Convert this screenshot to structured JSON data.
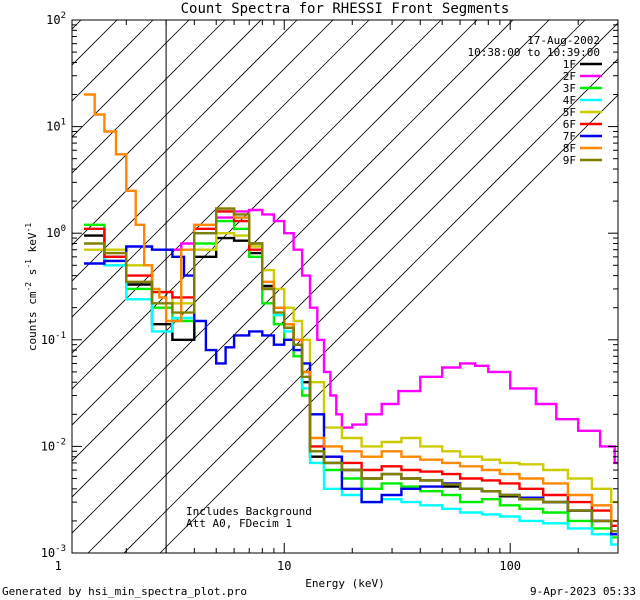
{
  "chart_data": {
    "type": "line",
    "title": "Count Spectra for RHESSI Front Segments",
    "xlabel": "Energy (keV)",
    "ylabel": "counts cm-2 s-1 keV-1",
    "xscale": "log",
    "yscale": "log",
    "xlim": [
      1.15,
      300
    ],
    "ylim": [
      0.001,
      100
    ],
    "shaded_range_keV": [
      1.15,
      3.0
    ],
    "x_ticks": [
      {
        "value": 1,
        "label": "1"
      },
      {
        "value": 10,
        "label": "10"
      },
      {
        "value": 100,
        "label": "100"
      }
    ],
    "y_ticks": [
      {
        "value": 0.001,
        "base": "10",
        "exp": "-3"
      },
      {
        "value": 0.01,
        "base": "10",
        "exp": "-2"
      },
      {
        "value": 0.1,
        "base": "10",
        "exp": "-1"
      },
      {
        "value": 1,
        "base": "10",
        "exp": "0"
      },
      {
        "value": 10,
        "base": "10",
        "exp": "1"
      },
      {
        "value": 100,
        "base": "10",
        "exp": "2"
      }
    ],
    "date": "17-Aug-2002",
    "time_range": "10:38:00 to 10:39:00",
    "annotations": [
      "Includes Background",
      "Att A0, FDecim 1"
    ],
    "legend_position": "top-right",
    "series": [
      {
        "name": "1F",
        "color": "#000000",
        "x": [
          1.3,
          1.6,
          2.0,
          2.6,
          3.2,
          4.0,
          5.0,
          6.0,
          7.0,
          8.0,
          9.0,
          10.0,
          11.0,
          12.0,
          13.0,
          15.0,
          18.0,
          22.0,
          27.0,
          33.0,
          40.0,
          50.0,
          60.0,
          75.0,
          90.0,
          110.0,
          140.0,
          180.0,
          230.0,
          280.0
        ],
        "values": [
          0.95,
          0.6,
          0.33,
          0.14,
          0.1,
          0.6,
          0.9,
          0.85,
          0.65,
          0.32,
          0.2,
          0.13,
          0.09,
          0.04,
          0.008,
          0.007,
          0.006,
          0.005,
          0.0055,
          0.005,
          0.0048,
          0.0042,
          0.004,
          0.0038,
          0.0034,
          0.0032,
          0.003,
          0.0025,
          0.002,
          0.0015
        ]
      },
      {
        "name": "2F",
        "color": "#ff00ff",
        "x": [
          3.0,
          3.5,
          4.0,
          5.0,
          6.0,
          7.0,
          8.0,
          9.0,
          10.0,
          11.0,
          12.0,
          13.0,
          14.0,
          15.0,
          16.0,
          17.0,
          18.0,
          20.0,
          23.0,
          27.0,
          32.0,
          40.0,
          50.0,
          60.0,
          70.0,
          80.0,
          100.0,
          130.0,
          160.0,
          200.0,
          250.0,
          290.0
        ],
        "values": [
          0.7,
          0.8,
          1.0,
          1.4,
          1.6,
          1.65,
          1.5,
          1.3,
          1.0,
          0.7,
          0.4,
          0.2,
          0.1,
          0.05,
          0.03,
          0.02,
          0.015,
          0.016,
          0.02,
          0.025,
          0.033,
          0.045,
          0.055,
          0.06,
          0.057,
          0.05,
          0.035,
          0.025,
          0.018,
          0.014,
          0.01,
          0.007
        ]
      },
      {
        "name": "3F",
        "color": "#00ee00",
        "x": [
          1.3,
          1.6,
          2.0,
          2.6,
          3.2,
          4.0,
          5.0,
          6.0,
          7.0,
          8.0,
          9.0,
          10.0,
          11.0,
          12.0,
          13.0,
          15.0,
          18.0,
          22.0,
          27.0,
          33.0,
          40.0,
          50.0,
          60.0,
          75.0,
          90.0,
          110.0,
          140.0,
          180.0,
          230.0,
          280.0
        ],
        "values": [
          1.2,
          0.55,
          0.3,
          0.2,
          0.15,
          0.8,
          1.3,
          1.1,
          0.6,
          0.22,
          0.14,
          0.1,
          0.07,
          0.03,
          0.009,
          0.006,
          0.005,
          0.004,
          0.0045,
          0.0042,
          0.0038,
          0.0035,
          0.003,
          0.0032,
          0.0028,
          0.0026,
          0.0024,
          0.002,
          0.0017,
          0.0014
        ]
      },
      {
        "name": "4F",
        "color": "#00ffff",
        "x": [
          1.3,
          1.6,
          2.0,
          2.6,
          3.2,
          4.0,
          5.0,
          6.0,
          7.0,
          8.0,
          9.0,
          10.0,
          11.0,
          12.0,
          13.0,
          15.0,
          18.0,
          22.0,
          27.0,
          33.0,
          40.0,
          50.0,
          60.0,
          75.0,
          90.0,
          110.0,
          140.0,
          180.0,
          230.0,
          280.0
        ],
        "values": [
          1.1,
          0.5,
          0.24,
          0.12,
          0.16,
          1.0,
          1.6,
          1.4,
          0.8,
          0.3,
          0.17,
          0.12,
          0.08,
          0.035,
          0.007,
          0.004,
          0.0035,
          0.003,
          0.0032,
          0.003,
          0.0028,
          0.0026,
          0.0024,
          0.0023,
          0.0022,
          0.002,
          0.0019,
          0.0017,
          0.0015,
          0.0012
        ]
      },
      {
        "name": "5F",
        "color": "#cccc00",
        "x": [
          1.3,
          1.6,
          2.0,
          2.6,
          3.2,
          4.0,
          5.0,
          6.0,
          7.0,
          8.0,
          9.0,
          10.0,
          11.0,
          12.0,
          13.0,
          15.0,
          18.0,
          22.0,
          27.0,
          33.0,
          40.0,
          50.0,
          60.0,
          75.0,
          90.0,
          110.0,
          140.0,
          180.0,
          230.0,
          280.0
        ],
        "values": [
          0.7,
          0.7,
          0.5,
          0.28,
          0.22,
          0.7,
          1.0,
          0.95,
          0.75,
          0.45,
          0.3,
          0.2,
          0.15,
          0.1,
          0.04,
          0.015,
          0.012,
          0.01,
          0.011,
          0.012,
          0.01,
          0.009,
          0.008,
          0.0075,
          0.007,
          0.0068,
          0.006,
          0.005,
          0.004,
          0.003
        ]
      },
      {
        "name": "6F",
        "color": "#ff0000",
        "x": [
          1.3,
          1.6,
          2.0,
          2.6,
          3.2,
          4.0,
          5.0,
          6.0,
          7.0,
          8.0,
          9.0,
          10.0,
          11.0,
          12.0,
          13.0,
          15.0,
          18.0,
          22.0,
          27.0,
          33.0,
          40.0,
          50.0,
          60.0,
          75.0,
          90.0,
          110.0,
          140.0,
          180.0,
          230.0,
          280.0
        ],
        "values": [
          1.1,
          0.6,
          0.4,
          0.28,
          0.25,
          1.1,
          1.6,
          1.3,
          0.7,
          0.3,
          0.2,
          0.14,
          0.1,
          0.05,
          0.01,
          0.008,
          0.007,
          0.006,
          0.0065,
          0.006,
          0.0058,
          0.0055,
          0.005,
          0.0048,
          0.0045,
          0.004,
          0.0035,
          0.003,
          0.0025,
          0.0018
        ]
      },
      {
        "name": "7F",
        "color": "#0000ee",
        "x": [
          1.3,
          1.6,
          2.0,
          2.6,
          3.2,
          3.6,
          4.0,
          4.5,
          5.0,
          5.5,
          6.0,
          7.0,
          8.0,
          9.0,
          10.0,
          11.0,
          12.0,
          13.0,
          15.0,
          18.0,
          22.0,
          27.0,
          33.0,
          40.0,
          50.0,
          60.0,
          75.0,
          90.0,
          110.0,
          140.0,
          180.0,
          230.0,
          280.0
        ],
        "values": [
          0.52,
          0.55,
          0.75,
          0.7,
          0.6,
          0.4,
          0.15,
          0.08,
          0.06,
          0.085,
          0.11,
          0.12,
          0.11,
          0.09,
          0.1,
          0.08,
          0.06,
          0.02,
          0.008,
          0.004,
          0.003,
          0.0035,
          0.004,
          0.0042,
          0.0045,
          0.004,
          0.0038,
          0.0035,
          0.0033,
          0.003,
          0.0025,
          0.002,
          0.0015
        ]
      },
      {
        "name": "8F",
        "color": "#ff8800",
        "x": [
          1.3,
          1.45,
          1.6,
          1.8,
          2.0,
          2.2,
          2.4,
          2.6,
          2.8,
          3.0,
          3.5,
          4.0,
          5.0,
          6.0,
          7.0,
          8.0,
          9.0,
          10.0,
          11.0,
          12.0,
          13.0,
          15.0,
          18.0,
          22.0,
          27.0,
          33.0,
          40.0,
          50.0,
          60.0,
          75.0,
          90.0,
          110.0,
          140.0,
          180.0,
          230.0,
          280.0
        ],
        "values": [
          20,
          13,
          9,
          5.5,
          2.5,
          1.2,
          0.5,
          0.3,
          0.25,
          0.15,
          0.7,
          1.2,
          1.7,
          1.4,
          0.8,
          0.35,
          0.2,
          0.14,
          0.1,
          0.05,
          0.012,
          0.01,
          0.009,
          0.008,
          0.009,
          0.008,
          0.0075,
          0.007,
          0.0065,
          0.006,
          0.0055,
          0.005,
          0.0045,
          0.0035,
          0.0028,
          0.002
        ]
      },
      {
        "name": "9F",
        "color": "#808000",
        "x": [
          1.3,
          1.6,
          2.0,
          2.6,
          3.2,
          4.0,
          5.0,
          6.0,
          7.0,
          8.0,
          9.0,
          10.0,
          11.0,
          12.0,
          13.0,
          15.0,
          18.0,
          22.0,
          27.0,
          33.0,
          40.0,
          50.0,
          60.0,
          75.0,
          90.0,
          110.0,
          140.0,
          180.0,
          230.0,
          280.0
        ],
        "values": [
          0.8,
          0.65,
          0.35,
          0.22,
          0.18,
          1.0,
          1.7,
          1.5,
          0.8,
          0.3,
          0.18,
          0.13,
          0.09,
          0.045,
          0.009,
          0.007,
          0.006,
          0.005,
          0.0055,
          0.005,
          0.0048,
          0.0044,
          0.004,
          0.0038,
          0.0035,
          0.0032,
          0.003,
          0.0025,
          0.002,
          0.0016
        ]
      }
    ]
  },
  "footer": {
    "left": "Generated by hsi_min_spectra_plot.pro",
    "right": "9-Apr-2023 05:33"
  }
}
